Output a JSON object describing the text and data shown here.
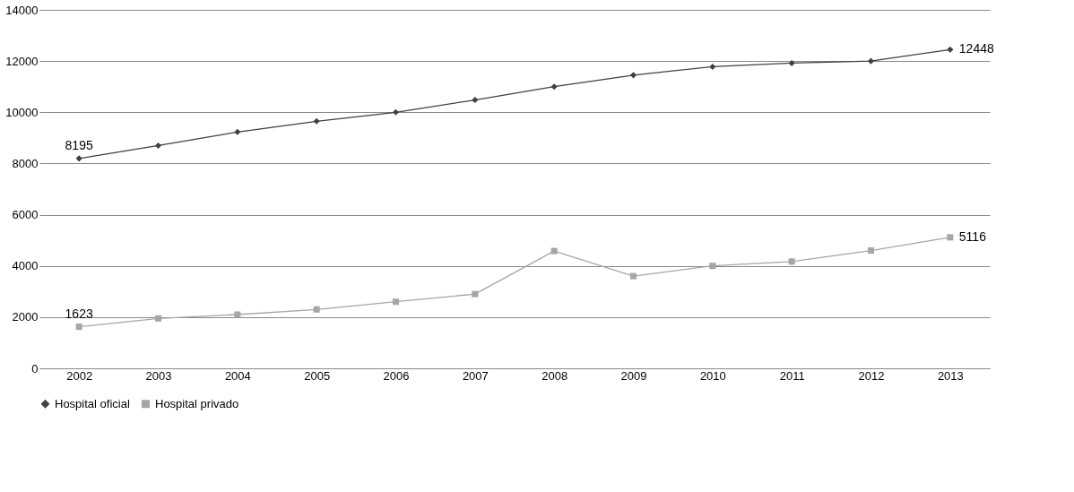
{
  "chart_data": {
    "type": "line",
    "categories": [
      "2002",
      "2003",
      "2004",
      "2005",
      "2006",
      "2007",
      "2008",
      "2009",
      "2010",
      "2011",
      "2012",
      "2013"
    ],
    "series": [
      {
        "name": "Hospital oficial",
        "color": "#404040",
        "marker": "diamond",
        "values": [
          8195,
          8700,
          9230,
          9650,
          10000,
          10480,
          11000,
          11450,
          11780,
          11920,
          12000,
          12448
        ],
        "value_labels": [
          "8195",
          null,
          null,
          null,
          null,
          null,
          null,
          null,
          null,
          null,
          null,
          "12448"
        ]
      },
      {
        "name": "Hospital privado",
        "color": "#a6a6a6",
        "marker": "square",
        "values": [
          1623,
          1950,
          2100,
          2300,
          2600,
          2900,
          4580,
          3600,
          4000,
          4170,
          4600,
          5116
        ],
        "value_labels": [
          "1623",
          null,
          null,
          null,
          null,
          null,
          null,
          null,
          null,
          null,
          null,
          "5116"
        ]
      }
    ],
    "ylim": [
      0,
      14000
    ],
    "yticks": [
      0,
      2000,
      4000,
      6000,
      8000,
      10000,
      12000,
      14000
    ],
    "grid": "y",
    "legend": "bottom"
  }
}
